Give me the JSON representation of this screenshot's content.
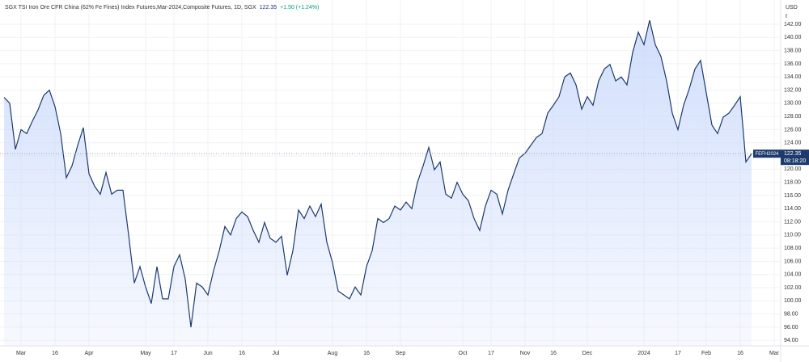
{
  "chart_data": {
    "type": "area",
    "title": "SGX TSI Iron Ore CFR China (62% Fe Fines) Index Futures,Mar-2024,Composite Futures, 1D, SGX",
    "header_values": [
      "122.35",
      "+1.50 (+1.24%)"
    ],
    "currency": "USD",
    "unit": "t",
    "last_price": {
      "symbol": "FEFH2024",
      "price": 122.35,
      "countdown": "08:18:20"
    },
    "color": "#1c3a6e",
    "fill_color": "#c9d8fb",
    "grid": true,
    "ylim": [
      91.7,
      144.7
    ],
    "yticks": [
      {
        "value": 94,
        "label": "94.00"
      },
      {
        "value": 96,
        "label": "96.00"
      },
      {
        "value": 98,
        "label": "98.00"
      },
      {
        "value": 100,
        "label": "100.00"
      },
      {
        "value": 102,
        "label": "102.00"
      },
      {
        "value": 104,
        "label": "104.00"
      },
      {
        "value": 106,
        "label": "106.00"
      },
      {
        "value": 108,
        "label": "108.00"
      },
      {
        "value": 110,
        "label": "110.00"
      },
      {
        "value": 112,
        "label": "112.00"
      },
      {
        "value": 114,
        "label": "114.00"
      },
      {
        "value": 116,
        "label": "116.00"
      },
      {
        "value": 118,
        "label": "118.00"
      },
      {
        "value": 120,
        "label": "120.00"
      },
      {
        "value": 122,
        "label": "122.00"
      },
      {
        "value": 124,
        "label": "124.00"
      },
      {
        "value": 126,
        "label": "126.00"
      },
      {
        "value": 128,
        "label": "128.00"
      },
      {
        "value": 130,
        "label": "130.00"
      },
      {
        "value": 132,
        "label": "132.00"
      },
      {
        "value": 134,
        "label": "134.00"
      },
      {
        "value": 136,
        "label": "136.00"
      },
      {
        "value": 138,
        "label": "138.00"
      },
      {
        "value": 140,
        "label": "140.00"
      },
      {
        "value": 142,
        "label": "142.00"
      }
    ],
    "categories": [
      null,
      null,
      null,
      "Mar",
      null,
      null,
      null,
      null,
      null,
      "16",
      null,
      null,
      null,
      null,
      null,
      "Apr",
      null,
      null,
      null,
      null,
      null,
      null,
      null,
      null,
      null,
      "May",
      null,
      null,
      null,
      null,
      "17",
      null,
      null,
      null,
      null,
      null,
      "Jun",
      null,
      null,
      null,
      null,
      null,
      "16",
      null,
      null,
      null,
      null,
      null,
      "Jul",
      null,
      null,
      null,
      null,
      null,
      null,
      null,
      null,
      null,
      "Aug",
      null,
      null,
      null,
      null,
      null,
      "16",
      null,
      null,
      null,
      null,
      null,
      "Sep",
      null,
      null,
      null,
      null,
      null,
      null,
      null,
      null,
      null,
      null,
      "Oct",
      null,
      null,
      null,
      null,
      "17",
      null,
      null,
      null,
      null,
      null,
      "Nov",
      null,
      null,
      null,
      null,
      "16",
      null,
      null,
      null,
      null,
      null,
      "Dec",
      null,
      null,
      null,
      null,
      null,
      null,
      null,
      null,
      null,
      "2024",
      null,
      null,
      null,
      null,
      null,
      "17",
      null,
      null,
      null,
      null,
      "Feb",
      null,
      null,
      null,
      null,
      null,
      "16",
      null,
      null,
      null,
      null,
      null,
      "Mar"
    ],
    "values": [
      130.9,
      130,
      123,
      126,
      125.4,
      127.3,
      129,
      131.2,
      132,
      129.5,
      125.4,
      118.7,
      120.5,
      123.6,
      126.3,
      119.3,
      117.4,
      116.2,
      119.5,
      116.2,
      116.8,
      116.8,
      110,
      102.7,
      105.2,
      102.1,
      99.6,
      105.2,
      100.3,
      100.3,
      105.2,
      107,
      103.3,
      96,
      102.7,
      102.1,
      100.9,
      104.6,
      107.6,
      111.3,
      110,
      112.5,
      113.5,
      112.8,
      110.7,
      108.9,
      111.9,
      109.5,
      108.9,
      109.8,
      103.9,
      107.6,
      113.8,
      112.5,
      114.4,
      112.8,
      114.7,
      108.9,
      105.8,
      101.5,
      100.9,
      100.3,
      102.1,
      100.9,
      105.2,
      107.6,
      112.5,
      111.9,
      112.5,
      114.4,
      113.8,
      115,
      114,
      118,
      120.5,
      123.3,
      119.9,
      121.1,
      116.2,
      115.6,
      118,
      116.2,
      115.2,
      112.5,
      110.7,
      114.4,
      116.8,
      116.2,
      113.2,
      116.8,
      119.3,
      121.7,
      122.4,
      123.6,
      124.8,
      125.4,
      128.5,
      129.7,
      131,
      134,
      134.6,
      132.8,
      129.1,
      131,
      129.7,
      133.4,
      135.2,
      135.9,
      133.4,
      134,
      132.8,
      137.7,
      140.8,
      138.9,
      142.6,
      138.9,
      137.1,
      133.4,
      128.5,
      126,
      129.7,
      132.2,
      135.2,
      136.5,
      131.6,
      126.7,
      125.4,
      127.9,
      128.5,
      129.7,
      131,
      121.1,
      122.35,
      null,
      null,
      null,
      null
    ]
  }
}
